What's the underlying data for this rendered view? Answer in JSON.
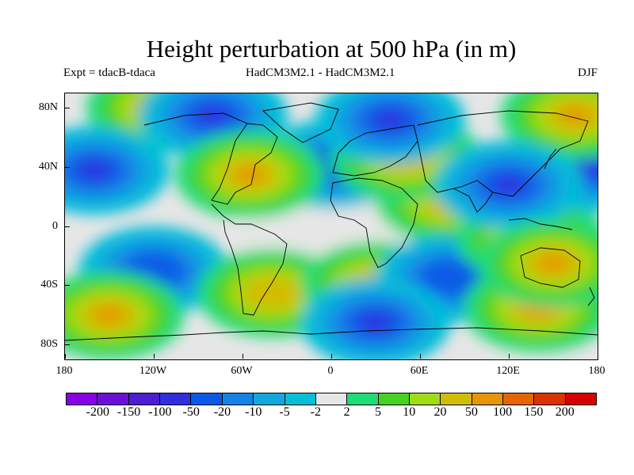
{
  "title": "Height perturbation at 500 hPa (in m)",
  "expt_label": "Expt = tdacB-tdaca",
  "model_label": "HadCM3M2.1 - HadCM3M2.1",
  "season": "DJF",
  "chart_data": {
    "type": "heatmap",
    "title": "Height perturbation at 500 hPa (in m)",
    "xlabel": "",
    "ylabel": "",
    "x_ticks": [
      "180",
      "120W",
      "60W",
      "0",
      "60E",
      "120E",
      "180"
    ],
    "y_ticks": [
      "80N",
      "40N",
      "0",
      "40S",
      "80S"
    ],
    "xlim": [
      -180,
      180
    ],
    "ylim": [
      -90,
      90
    ],
    "colorbar_labels": [
      "-200",
      "-150",
      "-100",
      "-50",
      "-20",
      "-10",
      "-5",
      "-2",
      "2",
      "5",
      "10",
      "20",
      "50",
      "100",
      "150",
      "200"
    ],
    "colorbar_colors": [
      "#8a00e6",
      "#6a10d6",
      "#4a1fd1",
      "#2f2fe0",
      "#0a5ae6",
      "#1482e6",
      "#10a8e0",
      "#00bfd8",
      "#e6e6e6",
      "#1edc78",
      "#46d21e",
      "#a0dc14",
      "#d2be00",
      "#e69600",
      "#e66400",
      "#dc3200",
      "#d70000"
    ],
    "features": [
      {
        "lon": -115,
        "lat": 80,
        "value": 50
      },
      {
        "lon": -80,
        "lat": 75,
        "value": -50
      },
      {
        "lon": 40,
        "lat": 72,
        "value": -50
      },
      {
        "lon": -55,
        "lat": 35,
        "value": 50
      },
      {
        "lon": -160,
        "lat": 38,
        "value": -50
      },
      {
        "lon": 175,
        "lat": 40,
        "value": -50
      },
      {
        "lon": 165,
        "lat": 75,
        "value": 50
      },
      {
        "lon": 80,
        "lat": 18,
        "value": 20
      },
      {
        "lon": 120,
        "lat": 28,
        "value": -50
      },
      {
        "lon": 0,
        "lat": 42,
        "value": -20
      },
      {
        "lon": 50,
        "lat": 47,
        "value": 20
      },
      {
        "lon": 150,
        "lat": -25,
        "value": 100
      },
      {
        "lon": -150,
        "lat": -60,
        "value": 50
      },
      {
        "lon": -120,
        "lat": -30,
        "value": -20
      },
      {
        "lon": -40,
        "lat": -45,
        "value": 20
      },
      {
        "lon": 30,
        "lat": -40,
        "value": 20
      },
      {
        "lon": 80,
        "lat": -35,
        "value": -20
      },
      {
        "lon": 140,
        "lat": -55,
        "value": 50
      },
      {
        "lon": 30,
        "lat": -65,
        "value": -50
      },
      {
        "lon": -15,
        "lat": -5,
        "value": 0
      },
      {
        "lon": 45,
        "lat": 0,
        "value": 0
      },
      {
        "lon": 135,
        "lat": -8,
        "value": 20
      }
    ]
  }
}
